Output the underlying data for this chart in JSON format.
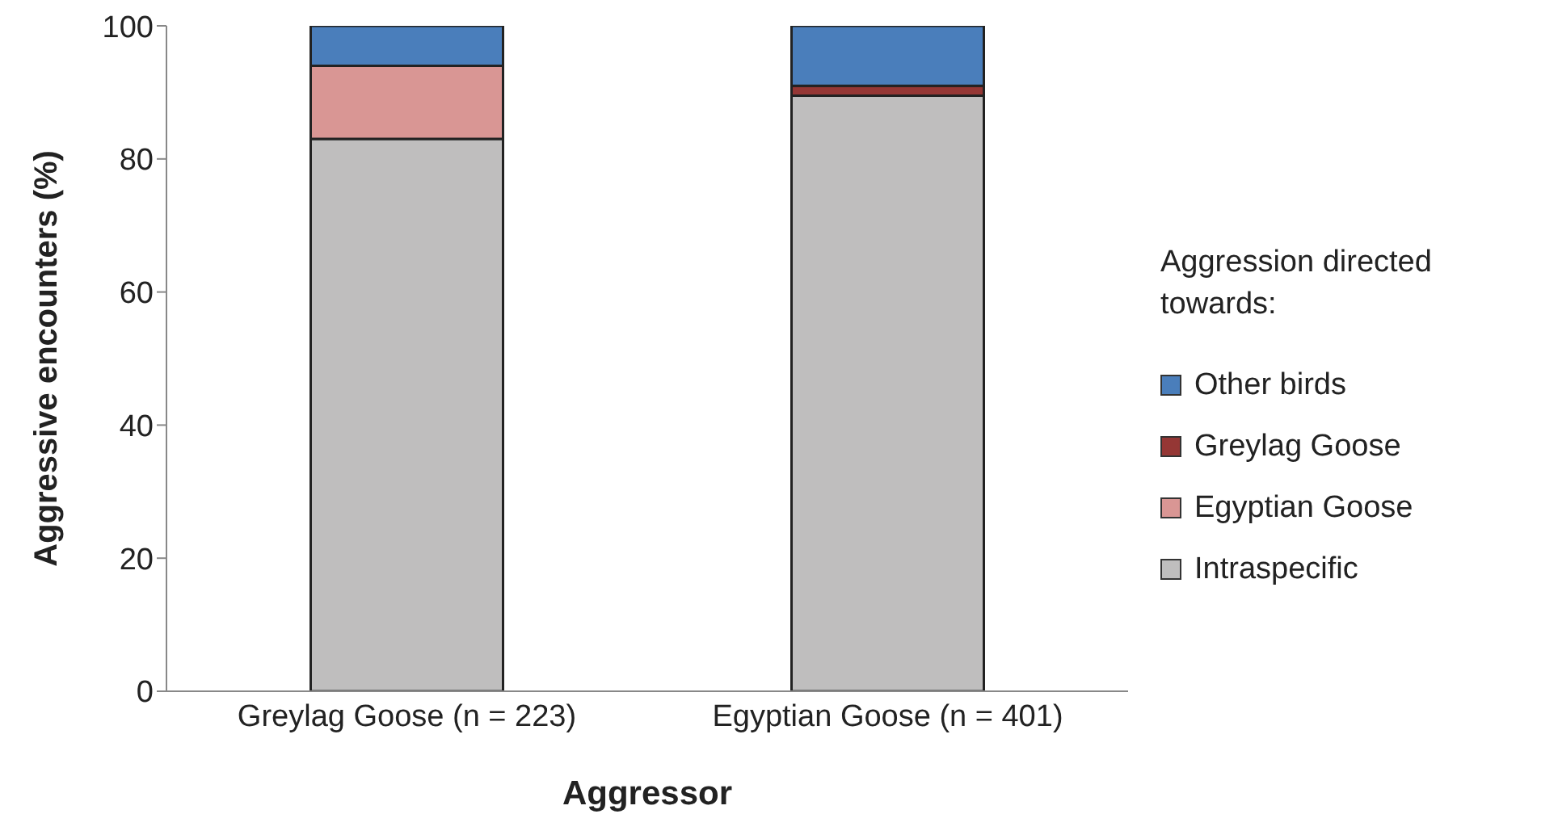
{
  "chart_data": {
    "type": "bar",
    "stacked": true,
    "xlabel": "Aggressor",
    "ylabel": "Aggressive encounters (%)",
    "legend_title": "Aggression directed towards:",
    "categories": [
      "Greylag Goose (n = 223)",
      "Egyptian Goose (n = 401)"
    ],
    "series": [
      {
        "name": "Intraspecific",
        "color": "#bfbebe",
        "values": [
          83,
          89.5
        ]
      },
      {
        "name": "Egyptian Goose",
        "color": "#d99694",
        "values": [
          11,
          0
        ]
      },
      {
        "name": "Greylag Goose",
        "color": "#953735",
        "values": [
          0,
          1.5
        ]
      },
      {
        "name": "Other birds",
        "color": "#4a7ebb",
        "values": [
          6,
          9
        ]
      }
    ],
    "ylim": [
      0,
      100
    ],
    "yticks": [
      0,
      20,
      40,
      60,
      80,
      100
    ],
    "grid": false,
    "legend": "right"
  }
}
